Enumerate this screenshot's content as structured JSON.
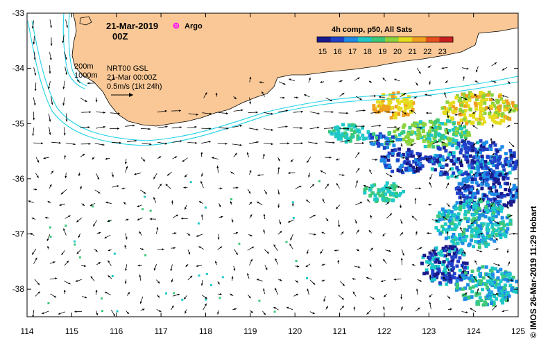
{
  "header": {
    "date": "21-Mar-2019",
    "time": "00Z",
    "argo_label": "Argo"
  },
  "annotations": {
    "iso_200": "200m",
    "iso_1000": "1000m",
    "product": "NRT00 GSL",
    "product_time": "21-Mar 00:00Z",
    "vector_scale": "0.5m/s (1kt 24h)"
  },
  "colorbar": {
    "title": "4h comp, p50, All Sats",
    "ticks": [
      "15",
      "16",
      "17",
      "18",
      "19",
      "20",
      "21",
      "22",
      "23"
    ],
    "colors": [
      "#1a1a8c",
      "#2040c8",
      "#1e8ce6",
      "#1ec8c8",
      "#3cc878",
      "#8cd23c",
      "#e6dc1e",
      "#f0a01e",
      "#e6501e",
      "#c81e1e"
    ]
  },
  "axes": {
    "x_ticks": [
      "114",
      "115",
      "116",
      "117",
      "118",
      "119",
      "120",
      "121",
      "122",
      "123",
      "124",
      "125"
    ],
    "y_ticks": [
      "-33",
      "-34",
      "-35",
      "-36",
      "-37",
      "-38"
    ],
    "x_range": [
      114,
      125
    ],
    "y_range": [
      -38.5,
      -33
    ]
  },
  "credit": "© IMOS 26-Mar-2019 11:29 Hobart",
  "colors": {
    "land": "#f9c896",
    "isobath": "#1ed2e6",
    "argo": "#ff00ff"
  }
}
